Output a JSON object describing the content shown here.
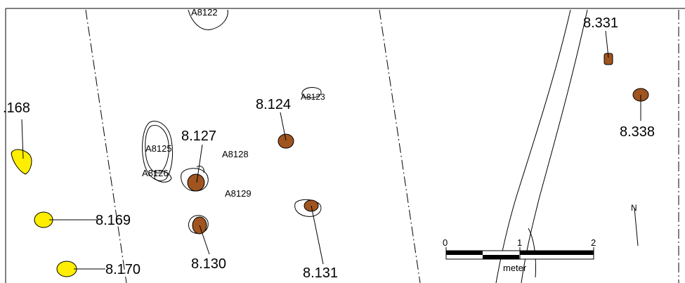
{
  "colors": {
    "dark_feature": "#a0541f",
    "yellow_feature": "#ffee00",
    "outline": "#000000",
    "background": "#ffffff"
  },
  "labels": {
    "a8122": "A8122",
    "a8123": "A8123",
    "a8125": "A8125",
    "a8126": "A8126",
    "a8128": "A8128",
    "a8129": "A8129",
    "f8124": "8.124",
    "f8127": "8.127",
    "f8130": "8.130",
    "f8131": "8.131",
    "f8168": ".168",
    "f8169": "8.169",
    "f8170": "8.170",
    "f8331": "8.331",
    "f8338": "8.338"
  },
  "scale_bar": {
    "ticks": [
      "0",
      "1",
      "2"
    ],
    "unit": "meter"
  },
  "north_arrow": {
    "label": "N"
  }
}
